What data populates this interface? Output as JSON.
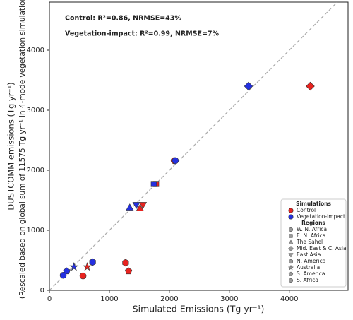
{
  "chart_data": {
    "type": "scatter",
    "x_label": "Simulated Emissions (Tg yr⁻¹)",
    "y_label": [
      "DUSTCOMM emissions (Tg yr⁻¹)",
      "(Rescaled based on global sum of 11575 Tg yr⁻¹ in 4-mode vegetation simulation)"
    ],
    "annotations": [
      {
        "text": "Control: R²=0.86, NRMSE=43%",
        "color": "#e8231f"
      },
      {
        "text": "Vegetation-impact: R²=0.99, NRMSE=7%",
        "color": "#2430e0"
      }
    ],
    "xlim": [
      0,
      4980
    ],
    "ylim": [
      0,
      4800
    ],
    "xticks": [
      0,
      1000,
      2000,
      3000,
      4000
    ],
    "yticks": [
      0,
      1000,
      2000,
      3000,
      4000
    ],
    "legend_titles": [
      "Simulations",
      "Regions"
    ],
    "regions": [
      {
        "name": "W. N. Africa",
        "marker": "circle"
      },
      {
        "name": "E. N. Africa",
        "marker": "square"
      },
      {
        "name": "The Sahel",
        "marker": "triangle-up"
      },
      {
        "name": "Mid. East & C. Asia",
        "marker": "diamond"
      },
      {
        "name": "East Asia",
        "marker": "triangle-down"
      },
      {
        "name": "N. America",
        "marker": "hexagon"
      },
      {
        "name": "Australia",
        "marker": "star"
      },
      {
        "name": "S. America",
        "marker": "pentagon"
      },
      {
        "name": "S. Africa",
        "marker": "circle"
      }
    ],
    "series": [
      {
        "name": "Control",
        "color": "#e8231f",
        "x": [
          2080,
          1780,
          1510,
          4350,
          1560,
          1270,
          630,
          1320,
          560
        ],
        "values": [
          2160,
          1770,
          1370,
          3400,
          1420,
          460,
          390,
          320,
          240
        ]
      },
      {
        "name": "Vegetation-impact",
        "color": "#2430e0",
        "x": [
          2100,
          1740,
          1340,
          3320,
          1450,
          720,
          410,
          290,
          230
        ],
        "values": [
          2160,
          1770,
          1380,
          3400,
          1420,
          470,
          390,
          320,
          250
        ]
      }
    ]
  }
}
